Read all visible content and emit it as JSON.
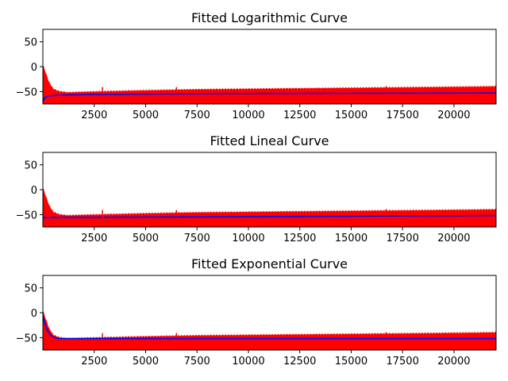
{
  "chart_data": [
    {
      "type": "line",
      "title": "Fitted Logarithmic Curve",
      "xlim": [
        0,
        22050
      ],
      "ylim": [
        -75,
        75
      ],
      "xticks": [
        2500,
        5000,
        7500,
        10000,
        12500,
        15000,
        17500,
        20000
      ],
      "xtick_labels": [
        "2500",
        "5000",
        "7500",
        "10000",
        "12500",
        "15000",
        "17500",
        "20000"
      ],
      "yticks": [
        50,
        0,
        -50
      ],
      "ytick_labels": [
        "50",
        "0",
        "−50"
      ],
      "grid": false,
      "series": [
        {
          "role": "data",
          "color": "#ff0000",
          "upper_envelope": [
            {
              "x": 0,
              "y": 3
            },
            {
              "x": 150,
              "y": -15
            },
            {
              "x": 300,
              "y": -32
            },
            {
              "x": 500,
              "y": -45
            },
            {
              "x": 800,
              "y": -50
            },
            {
              "x": 1200,
              "y": -52
            },
            {
              "x": 2000,
              "y": -51
            },
            {
              "x": 2900,
              "y": -50
            },
            {
              "x": 5000,
              "y": -48
            },
            {
              "x": 7500,
              "y": -46
            },
            {
              "x": 10000,
              "y": -45
            },
            {
              "x": 12500,
              "y": -44
            },
            {
              "x": 15000,
              "y": -43
            },
            {
              "x": 17500,
              "y": -42
            },
            {
              "x": 20000,
              "y": -41
            },
            {
              "x": 22050,
              "y": -40
            }
          ],
          "spikes": [
            {
              "x": 2900,
              "y": -41
            },
            {
              "x": 6500,
              "y": -41
            },
            {
              "x": 16700,
              "y": -39
            }
          ],
          "lower_bound": -75
        },
        {
          "role": "fit",
          "color": "#0000ff",
          "points": [
            {
              "x": 0,
              "y": -70
            },
            {
              "x": 100,
              "y": -62
            },
            {
              "x": 250,
              "y": -59
            },
            {
              "x": 500,
              "y": -58
            },
            {
              "x": 1000,
              "y": -57
            },
            {
              "x": 2500,
              "y": -56
            },
            {
              "x": 5000,
              "y": -55
            },
            {
              "x": 10000,
              "y": -54
            },
            {
              "x": 15000,
              "y": -53.5
            },
            {
              "x": 22050,
              "y": -53
            }
          ]
        }
      ]
    },
    {
      "type": "line",
      "title": "Fitted Lineal Curve",
      "xlim": [
        0,
        22050
      ],
      "ylim": [
        -75,
        75
      ],
      "xticks": [
        2500,
        5000,
        7500,
        10000,
        12500,
        15000,
        17500,
        20000
      ],
      "xtick_labels": [
        "2500",
        "5000",
        "7500",
        "10000",
        "12500",
        "15000",
        "17500",
        "20000"
      ],
      "yticks": [
        50,
        0,
        -50
      ],
      "ytick_labels": [
        "50",
        "0",
        "−50"
      ],
      "grid": false,
      "series": [
        {
          "role": "data",
          "color": "#ff0000",
          "upper_envelope": [
            {
              "x": 0,
              "y": 3
            },
            {
              "x": 150,
              "y": -15
            },
            {
              "x": 300,
              "y": -32
            },
            {
              "x": 500,
              "y": -45
            },
            {
              "x": 800,
              "y": -50
            },
            {
              "x": 1200,
              "y": -52
            },
            {
              "x": 2000,
              "y": -51
            },
            {
              "x": 2900,
              "y": -50
            },
            {
              "x": 5000,
              "y": -48
            },
            {
              "x": 7500,
              "y": -46
            },
            {
              "x": 10000,
              "y": -45
            },
            {
              "x": 12500,
              "y": -44
            },
            {
              "x": 15000,
              "y": -43
            },
            {
              "x": 17500,
              "y": -42
            },
            {
              "x": 20000,
              "y": -41
            },
            {
              "x": 22050,
              "y": -40
            }
          ],
          "spikes": [
            {
              "x": 2900,
              "y": -41
            },
            {
              "x": 6500,
              "y": -41
            },
            {
              "x": 16700,
              "y": -39
            }
          ],
          "lower_bound": -75
        },
        {
          "role": "fit",
          "color": "#0000ff",
          "points": [
            {
              "x": 0,
              "y": -56
            },
            {
              "x": 22050,
              "y": -52
            }
          ]
        }
      ]
    },
    {
      "type": "line",
      "title": "Fitted Exponential Curve",
      "xlim": [
        0,
        22050
      ],
      "ylim": [
        -75,
        75
      ],
      "xticks": [
        2500,
        5000,
        7500,
        10000,
        12500,
        15000,
        17500,
        20000
      ],
      "xtick_labels": [
        "2500",
        "5000",
        "7500",
        "10000",
        "12500",
        "15000",
        "17500",
        "20000"
      ],
      "yticks": [
        50,
        0,
        -50
      ],
      "ytick_labels": [
        "50",
        "0",
        "−50"
      ],
      "grid": false,
      "series": [
        {
          "role": "data",
          "color": "#ff0000",
          "upper_envelope": [
            {
              "x": 0,
              "y": 3
            },
            {
              "x": 150,
              "y": -15
            },
            {
              "x": 300,
              "y": -32
            },
            {
              "x": 500,
              "y": -45
            },
            {
              "x": 800,
              "y": -50
            },
            {
              "x": 1200,
              "y": -52
            },
            {
              "x": 2000,
              "y": -51
            },
            {
              "x": 2900,
              "y": -50
            },
            {
              "x": 5000,
              "y": -48
            },
            {
              "x": 7500,
              "y": -46
            },
            {
              "x": 10000,
              "y": -45
            },
            {
              "x": 12500,
              "y": -44
            },
            {
              "x": 15000,
              "y": -43
            },
            {
              "x": 17500,
              "y": -42
            },
            {
              "x": 20000,
              "y": -41
            },
            {
              "x": 22050,
              "y": -40
            }
          ],
          "spikes": [
            {
              "x": 2900,
              "y": -41
            },
            {
              "x": 6500,
              "y": -41
            },
            {
              "x": 16700,
              "y": -39
            }
          ],
          "lower_bound": -75
        },
        {
          "role": "fit",
          "color": "#0000ff",
          "points": [
            {
              "x": 0,
              "y": -5
            },
            {
              "x": 100,
              "y": -22
            },
            {
              "x": 200,
              "y": -34
            },
            {
              "x": 350,
              "y": -44
            },
            {
              "x": 500,
              "y": -49
            },
            {
              "x": 700,
              "y": -51.5
            },
            {
              "x": 1000,
              "y": -52
            },
            {
              "x": 2500,
              "y": -52
            },
            {
              "x": 10000,
              "y": -52
            },
            {
              "x": 22050,
              "y": -52
            }
          ]
        }
      ]
    }
  ]
}
